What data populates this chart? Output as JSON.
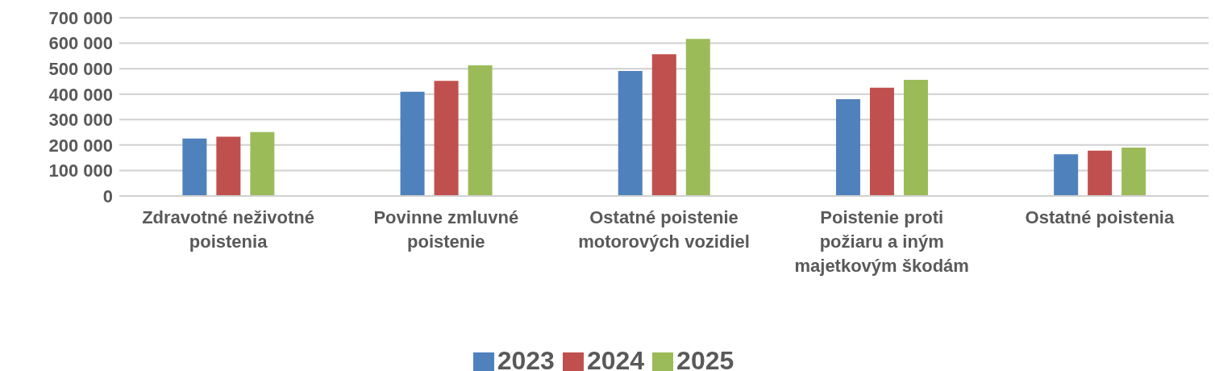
{
  "chart_data": {
    "type": "bar",
    "categories": [
      "Zdravotné neživotné poistenia",
      "Povinne zmluvné poistenie",
      "Ostatné poistenie motorových vozidiel",
      "Poistenie proti požiaru a iným majetkovým škodám",
      "Ostatné poistenia"
    ],
    "series": [
      {
        "name": "2023",
        "color": "#4f81bd",
        "values": [
          226000,
          409000,
          491000,
          380000,
          164000
        ]
      },
      {
        "name": "2024",
        "color": "#c0504d",
        "values": [
          233000,
          452000,
          557000,
          425000,
          178000
        ]
      },
      {
        "name": "2025",
        "color": "#9bbb59",
        "values": [
          251000,
          513000,
          617000,
          456000,
          190000
        ]
      }
    ],
    "ylim": [
      0,
      700000
    ],
    "yticks": [
      {
        "value": 0,
        "label": "0"
      },
      {
        "value": 100000,
        "label": "100 000"
      },
      {
        "value": 200000,
        "label": "200 000"
      },
      {
        "value": 300000,
        "label": "300 000"
      },
      {
        "value": 400000,
        "label": "400 000"
      },
      {
        "value": 500000,
        "label": "500 000"
      },
      {
        "value": 600000,
        "label": "600 000"
      },
      {
        "value": 700000,
        "label": "700 000"
      }
    ],
    "grid": "y",
    "legend": "bottom"
  }
}
